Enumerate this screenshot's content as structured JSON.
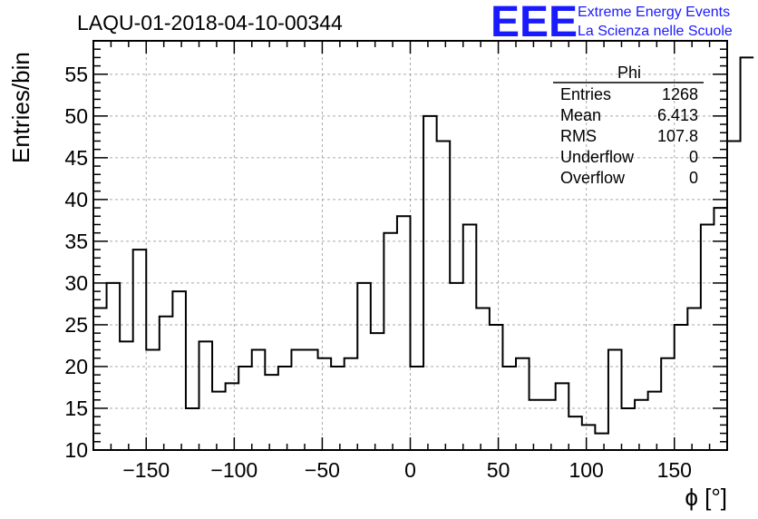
{
  "chart_data": {
    "type": "histogram",
    "title": "LAQU-01-2018-04-10-00344",
    "xlabel": "ϕ [°]",
    "ylabel": "Entries/bin",
    "xlim": [
      -180,
      180
    ],
    "ylim": [
      10,
      59
    ],
    "grid": true,
    "x_ticks": [
      -150,
      -100,
      -50,
      0,
      50,
      100,
      150
    ],
    "x_tick_labels": [
      "−150",
      "−100",
      "−50",
      "0",
      "50",
      "100",
      "150"
    ],
    "y_ticks": [
      10,
      15,
      20,
      25,
      30,
      35,
      40,
      45,
      50,
      55
    ],
    "bin_edges_start": -180,
    "bin_width": 7.5,
    "values": [
      27,
      30,
      23,
      34,
      22,
      26,
      29,
      15,
      23,
      17,
      18,
      20,
      22,
      19,
      20,
      22,
      22,
      21,
      20,
      21,
      30,
      24,
      36,
      38,
      20,
      50,
      47,
      30,
      37,
      27,
      25,
      20,
      21,
      16,
      16,
      18,
      14,
      13,
      12,
      22,
      15,
      16,
      17,
      21,
      25,
      27,
      37,
      39,
      47,
      57
    ],
    "stats": {
      "name": "Phi",
      "rows": [
        {
          "label": "Entries",
          "value": "1268"
        },
        {
          "label": "Mean",
          "value": "6.413"
        },
        {
          "label": "RMS",
          "value": "107.8"
        },
        {
          "label": "Underflow",
          "value": "0"
        },
        {
          "label": "Overflow",
          "value": "0"
        }
      ]
    },
    "line_color": "#000000"
  },
  "logo": {
    "mark": "EEE",
    "line1": "Extreme Energy Events",
    "line2": "La Scienza nelle Scuole",
    "color": "#1a1aff"
  }
}
